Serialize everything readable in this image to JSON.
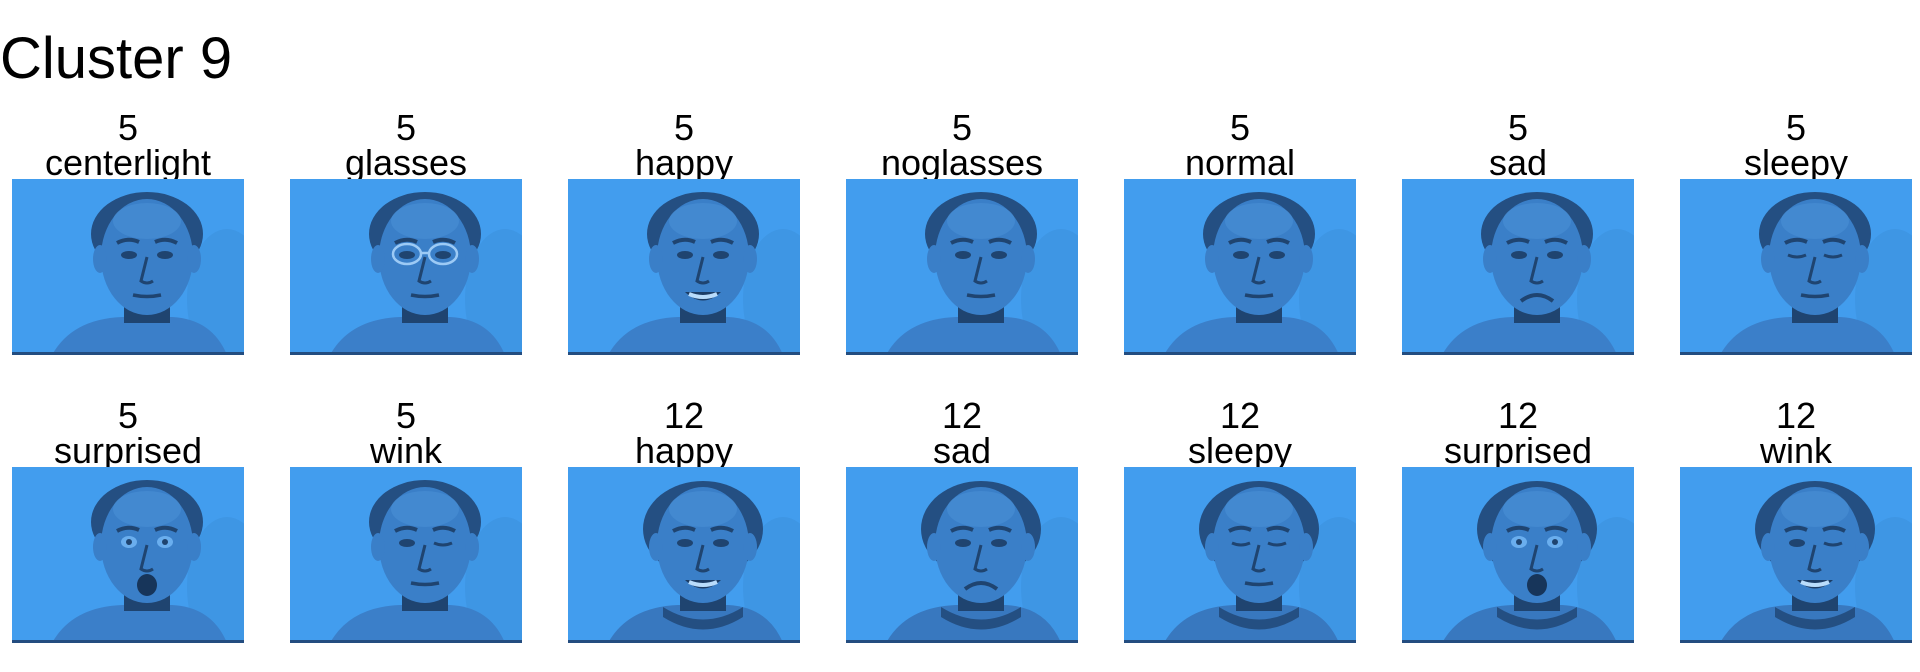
{
  "title": "Cluster 9",
  "colors": {
    "background": "#429dee",
    "face": "#3a7fc8",
    "hair": "#244f82",
    "shadow": "#1f4470",
    "bottom_line": "#234d80"
  },
  "images": [
    {
      "subject": "5",
      "label": "centerlight",
      "image": "face-photo",
      "glasses": false,
      "mouth": "neutral",
      "eyes": "open"
    },
    {
      "subject": "5",
      "label": "glasses",
      "image": "face-photo",
      "glasses": true,
      "mouth": "neutral",
      "eyes": "open"
    },
    {
      "subject": "5",
      "label": "happy",
      "image": "face-photo",
      "glasses": false,
      "mouth": "smile",
      "eyes": "open"
    },
    {
      "subject": "5",
      "label": "noglasses",
      "image": "face-photo",
      "glasses": false,
      "mouth": "neutral",
      "eyes": "open"
    },
    {
      "subject": "5",
      "label": "normal",
      "image": "face-photo",
      "glasses": false,
      "mouth": "neutral",
      "eyes": "open"
    },
    {
      "subject": "5",
      "label": "sad",
      "image": "face-photo",
      "glasses": false,
      "mouth": "frown",
      "eyes": "open"
    },
    {
      "subject": "5",
      "label": "sleepy",
      "image": "face-photo",
      "glasses": false,
      "mouth": "neutral",
      "eyes": "closed"
    },
    {
      "subject": "5",
      "label": "surprised",
      "image": "face-photo",
      "glasses": false,
      "mouth": "open",
      "eyes": "wide"
    },
    {
      "subject": "5",
      "label": "wink",
      "image": "face-photo",
      "glasses": false,
      "mouth": "neutral",
      "eyes": "wink"
    },
    {
      "subject": "12",
      "label": "happy",
      "image": "face-photo",
      "glasses": false,
      "mouth": "smile",
      "eyes": "open"
    },
    {
      "subject": "12",
      "label": "sad",
      "image": "face-photo",
      "glasses": false,
      "mouth": "frown",
      "eyes": "open"
    },
    {
      "subject": "12",
      "label": "sleepy",
      "image": "face-photo",
      "glasses": false,
      "mouth": "neutral",
      "eyes": "closed"
    },
    {
      "subject": "12",
      "label": "surprised",
      "image": "face-photo",
      "glasses": false,
      "mouth": "open",
      "eyes": "wide"
    },
    {
      "subject": "12",
      "label": "wink",
      "image": "face-photo",
      "glasses": false,
      "mouth": "smile",
      "eyes": "wink"
    }
  ]
}
